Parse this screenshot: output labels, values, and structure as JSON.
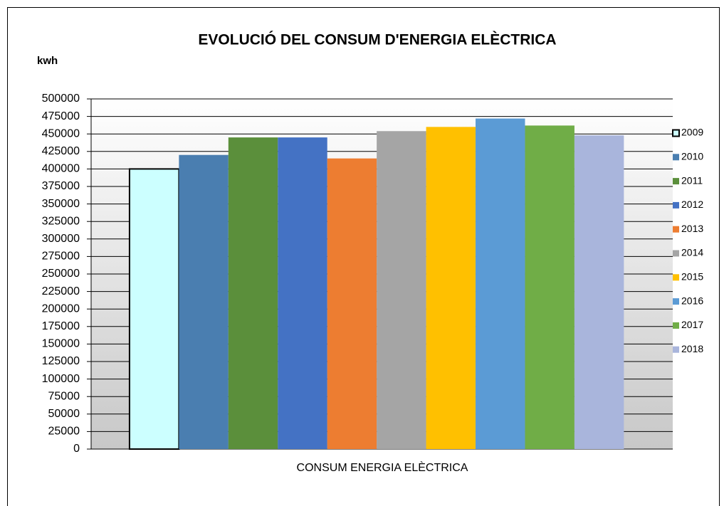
{
  "chart_data": {
    "type": "bar",
    "title": "EVOLUCIÓ DEL CONSUM D'ENERGIA ELÈCTRICA",
    "y_label": "kwh",
    "x_label": "CONSUM ENERGIA ELÈCTRICA",
    "categories": [
      "CONSUM ENERGIA ELÈCTRICA"
    ],
    "series": [
      {
        "name": "2009",
        "color": "#ccffff",
        "border": "#000000",
        "values": [
          400000
        ]
      },
      {
        "name": "2010",
        "color": "#4a7eb0",
        "values": [
          420000
        ]
      },
      {
        "name": "2011",
        "color": "#5b8f3b",
        "values": [
          445000
        ]
      },
      {
        "name": "2012",
        "color": "#4472c4",
        "values": [
          445000
        ]
      },
      {
        "name": "2013",
        "color": "#ed7d31",
        "values": [
          415000
        ]
      },
      {
        "name": "2014",
        "color": "#a5a5a5",
        "values": [
          454000
        ]
      },
      {
        "name": "2015",
        "color": "#ffc000",
        "values": [
          460000
        ]
      },
      {
        "name": "2016",
        "color": "#5b9bd5",
        "values": [
          472000
        ]
      },
      {
        "name": "2017",
        "color": "#70ad47",
        "values": [
          462000
        ]
      },
      {
        "name": "2018",
        "color": "#a9b5dc",
        "values": [
          448000
        ]
      }
    ],
    "ylim": [
      0,
      500000
    ],
    "yticks": [
      0,
      25000,
      50000,
      75000,
      100000,
      125000,
      150000,
      175000,
      200000,
      225000,
      250000,
      275000,
      300000,
      325000,
      350000,
      375000,
      400000,
      425000,
      450000,
      475000,
      500000
    ],
    "grid": true,
    "legend": "right"
  }
}
